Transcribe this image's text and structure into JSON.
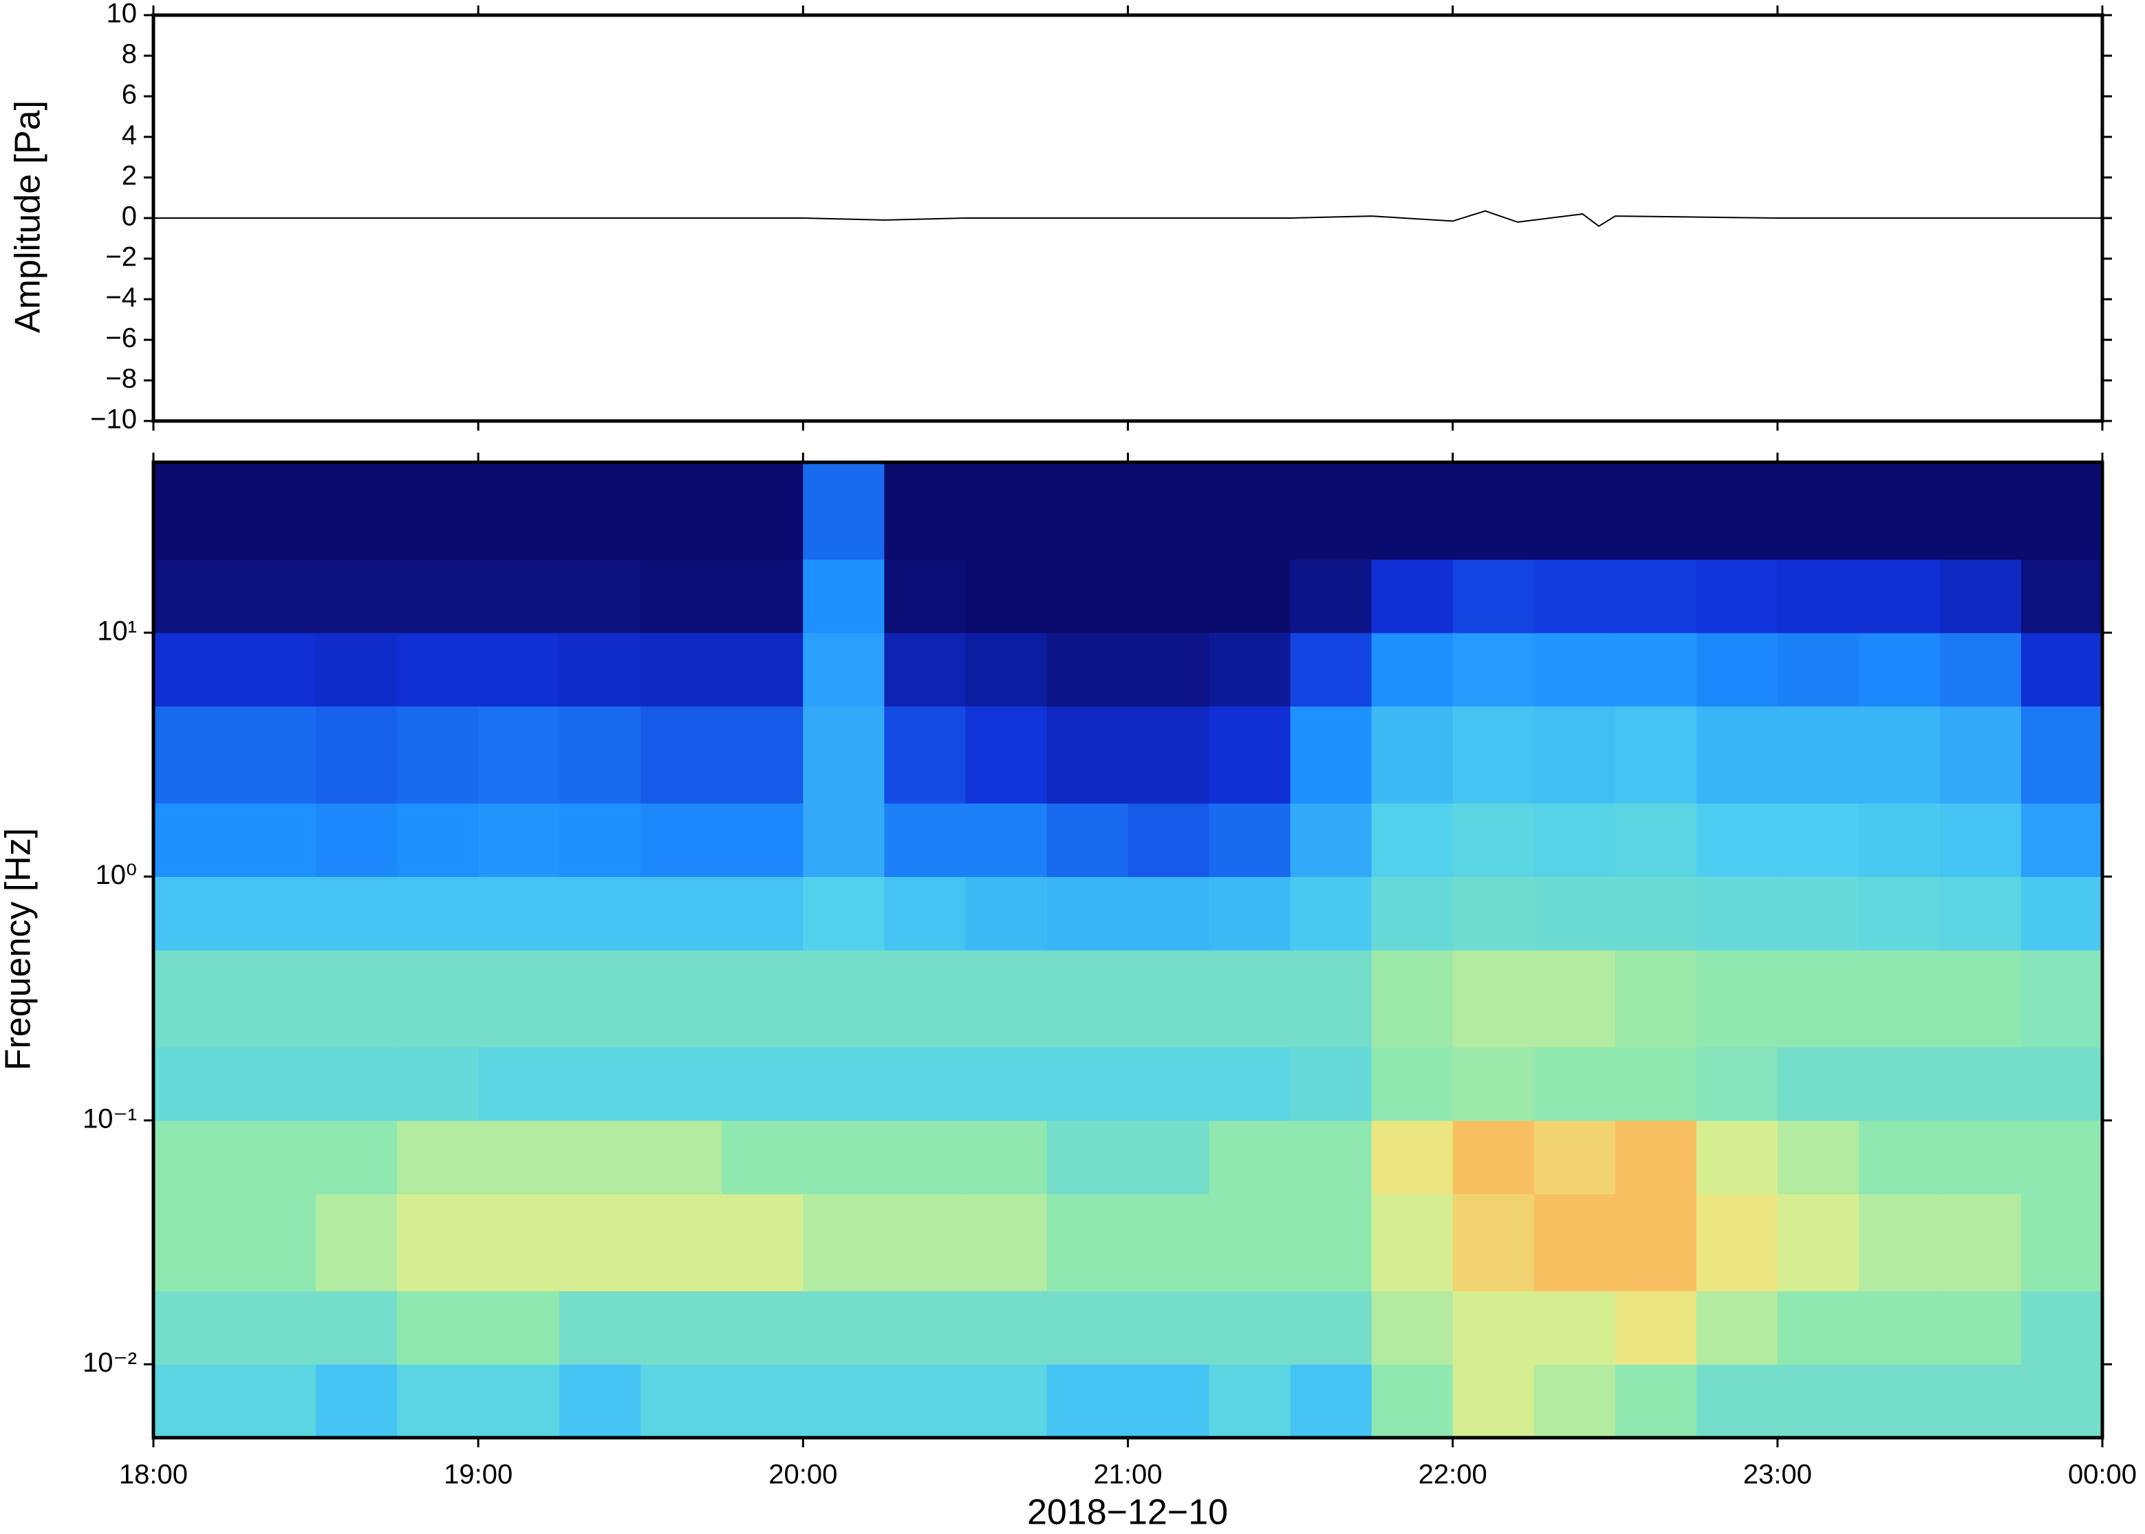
{
  "chart_data": [
    {
      "type": "line",
      "ylabel": "Amplitude [Pa]",
      "color": "#000000",
      "x": [
        18,
        18.5,
        19,
        19.5,
        20,
        20.25,
        20.5,
        21,
        21.5,
        21.75,
        22,
        22.1,
        22.2,
        22.4,
        22.45,
        22.5,
        23,
        23.5,
        24
      ],
      "values": [
        0,
        0,
        0,
        0,
        0,
        -0.1,
        0,
        0,
        0,
        0.1,
        -0.15,
        0.35,
        -0.2,
        0.2,
        -0.4,
        0.1,
        0,
        0,
        0
      ],
      "xlim": [
        18,
        24
      ],
      "xticks": [
        18,
        19,
        20,
        21,
        22,
        23,
        24
      ],
      "ylim": [
        -10,
        10
      ],
      "yticks": [
        {
          "value": -10,
          "label": "−10"
        },
        {
          "value": -8,
          "label": "−8"
        },
        {
          "value": -6,
          "label": "−6"
        },
        {
          "value": -4,
          "label": "−4"
        },
        {
          "value": -2,
          "label": "−2"
        },
        0,
        2,
        4,
        6,
        8,
        10
      ]
    },
    {
      "type": "heatmap",
      "ylabel": "Frequency [Hz]",
      "xlabel": "2018−12−10",
      "log_y": true,
      "xlim": [
        18,
        24
      ],
      "xticks": [
        {
          "value": 18,
          "label": "18:00"
        },
        {
          "value": 19,
          "label": "19:00"
        },
        {
          "value": 20,
          "label": "20:00"
        },
        {
          "value": 21,
          "label": "21:00"
        },
        {
          "value": 22,
          "label": "22:00"
        },
        {
          "value": 23,
          "label": "23:00"
        },
        {
          "value": 24,
          "label": "00:00"
        }
      ],
      "ylim": [
        0.005,
        50
      ],
      "yticks": [
        {
          "value": 0.01,
          "label": "10⁻²"
        },
        {
          "value": 0.1,
          "label": "10⁻¹"
        },
        {
          "value": 1,
          "label": "10⁰"
        },
        {
          "value": 10,
          "label": "10¹"
        }
      ],
      "x_bins": [
        18,
        18.25,
        18.5,
        18.75,
        19,
        19.25,
        19.5,
        19.75,
        20,
        20.25,
        20.5,
        20.75,
        21,
        21.25,
        21.5,
        21.75,
        22,
        22.25,
        22.5,
        22.75,
        23,
        23.25,
        23.5,
        23.75,
        24
      ],
      "y_bins": [
        0.005,
        0.01,
        0.02,
        0.05,
        0.1,
        0.2,
        0.5,
        1,
        2,
        5,
        10,
        20,
        50
      ],
      "zlim": [
        0,
        10
      ],
      "colormap": [
        "#0b0b6e",
        "#1030d8",
        "#1e90ff",
        "#4fd0f0",
        "#8fe8b0",
        "#e8f08a",
        "#f8c060",
        "#f07830",
        "#d03020"
      ],
      "z": [
        [
          4,
          4,
          3.5,
          4,
          4,
          3.5,
          4,
          4,
          4,
          4,
          4,
          3.5,
          3.5,
          4,
          3.5,
          5,
          6,
          5.5,
          5,
          4.5,
          4.5,
          4.5,
          4.5,
          4.5
        ],
        [
          4.5,
          4.5,
          4.5,
          5,
          5,
          4.5,
          4.5,
          4.5,
          4.5,
          4.5,
          4.5,
          4.5,
          4.5,
          4.5,
          4.5,
          5.5,
          6,
          6,
          6.5,
          5.5,
          5,
          5,
          5,
          4.5
        ],
        [
          5,
          5,
          5.5,
          6,
          6,
          6,
          6,
          6,
          5.5,
          5.5,
          5.5,
          5,
          5,
          5,
          5,
          6,
          7,
          7.5,
          7.5,
          6.5,
          6,
          5.5,
          5.5,
          5
        ],
        [
          5,
          5,
          5,
          5.5,
          5.5,
          5.5,
          5.5,
          5,
          5,
          5,
          5,
          4.5,
          4.5,
          5,
          5,
          6.5,
          7.5,
          7,
          7.5,
          6,
          5.5,
          5,
          5,
          5
        ],
        [
          4.2,
          4.2,
          4.2,
          4.2,
          4,
          4,
          4,
          4,
          4,
          4,
          4,
          4,
          4,
          4,
          4.2,
          5,
          5.2,
          5,
          5,
          4.8,
          4.5,
          4.5,
          4.5,
          4.5
        ],
        [
          4.5,
          4.5,
          4.5,
          4.5,
          4.5,
          4.5,
          4.5,
          4.5,
          4.5,
          4.5,
          4.5,
          4.5,
          4.5,
          4.5,
          4.5,
          5.2,
          5.5,
          5.5,
          5.2,
          5,
          5,
          5,
          5,
          4.8
        ],
        [
          3.5,
          3.5,
          3.5,
          3.5,
          3.5,
          3.5,
          3.5,
          3.5,
          3.8,
          3.5,
          3.3,
          3.2,
          3.2,
          3.3,
          3.6,
          4.2,
          4.4,
          4.3,
          4.3,
          4.2,
          4.2,
          4.1,
          4,
          3.6
        ],
        [
          2.5,
          2.5,
          2.4,
          2.5,
          2.6,
          2.5,
          2.4,
          2.4,
          3,
          2.3,
          2.3,
          2,
          1.8,
          2,
          3,
          3.8,
          4,
          3.9,
          4,
          3.7,
          3.7,
          3.6,
          3.5,
          2.8
        ],
        [
          2,
          2,
          1.9,
          2,
          2.1,
          2,
          1.8,
          1.8,
          3,
          1.6,
          1.3,
          1,
          1,
          1.2,
          2.5,
          3.3,
          3.5,
          3.4,
          3.5,
          3.2,
          3.2,
          3.2,
          3,
          2.2
        ],
        [
          1.2,
          1.2,
          1.1,
          1.2,
          1.2,
          1.1,
          1,
          1,
          2.8,
          0.8,
          0.6,
          0.3,
          0.3,
          0.5,
          1.5,
          2.5,
          2.7,
          2.6,
          2.6,
          2.4,
          2.3,
          2.4,
          2.2,
          1.2
        ],
        [
          0.2,
          0.2,
          0.2,
          0.2,
          0.2,
          0.2,
          0.1,
          0.1,
          2.5,
          0.1,
          0,
          0,
          0,
          0,
          0.3,
          1.2,
          1.5,
          1.4,
          1.4,
          1.3,
          1.2,
          1.2,
          1,
          0.2
        ],
        [
          0,
          0,
          0,
          0,
          0,
          0,
          0,
          0,
          2,
          0,
          0,
          0,
          0,
          0,
          0,
          0,
          0,
          0,
          0,
          0,
          0,
          0,
          0,
          0
        ]
      ]
    }
  ]
}
